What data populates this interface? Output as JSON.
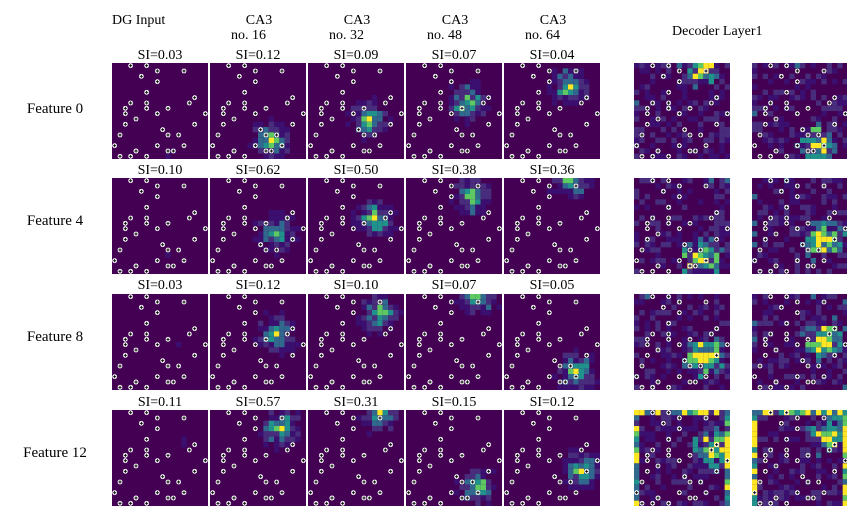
{
  "columns": [
    {
      "title": "DG Input",
      "sub": ""
    },
    {
      "title": "CA3",
      "sub": "no. 16"
    },
    {
      "title": "CA3",
      "sub": "no. 32"
    },
    {
      "title": "CA3",
      "sub": "no. 48"
    },
    {
      "title": "CA3",
      "sub": "no. 64"
    }
  ],
  "decoder_title": "Decoder Layer1",
  "rows": [
    {
      "label": "Feature 0",
      "si": [
        "SI=0.03",
        "SI=0.12",
        "SI=0.09",
        "SI=0.07",
        "SI=0.04"
      ]
    },
    {
      "label": "Feature 4",
      "si": [
        "SI=0.10",
        "SI=0.62",
        "SI=0.50",
        "SI=0.38",
        "SI=0.36"
      ]
    },
    {
      "label": "Feature 8",
      "si": [
        "SI=0.03",
        "SI=0.12",
        "SI=0.10",
        "SI=0.07",
        "SI=0.05"
      ]
    },
    {
      "label": "Feature 12",
      "si": [
        "SI=0.11",
        "SI=0.57",
        "SI=0.31",
        "SI=0.15",
        "SI=0.12"
      ]
    }
  ],
  "colors": {
    "base": "#440154",
    "mid": "#31688e",
    "teal": "#21918c",
    "green": "#5ec962",
    "yellow": "#fde725"
  }
}
